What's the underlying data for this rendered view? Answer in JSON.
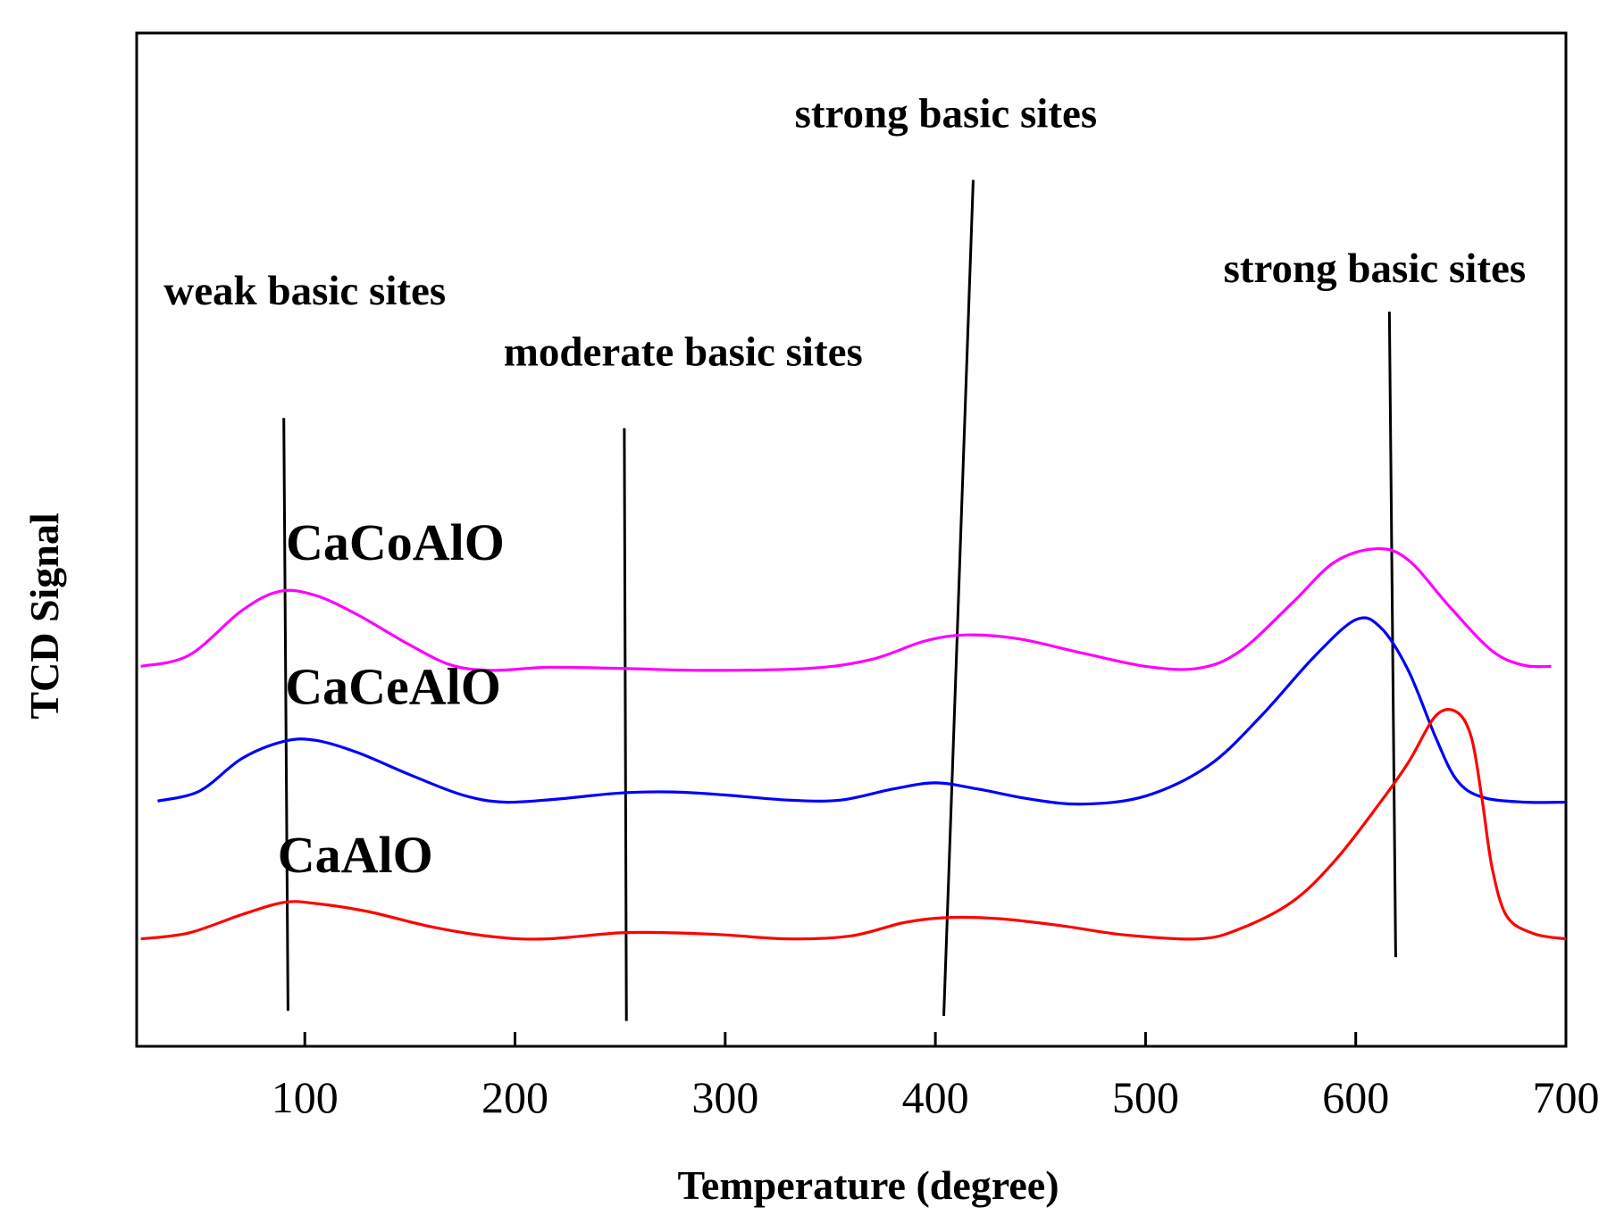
{
  "chart_data": {
    "type": "line",
    "title": "",
    "xlabel": "Temperature (degree)",
    "ylabel": "TCD Signal",
    "xlim": [
      20,
      700
    ],
    "ylim": [
      0,
      100
    ],
    "x_ticks": [
      100,
      200,
      300,
      400,
      500,
      600,
      700
    ],
    "grid": false,
    "y_ticks_shown": false,
    "series": [
      {
        "name": "CaCoAlO",
        "color": "#ff00ff",
        "points": [
          [
            22,
            37.5
          ],
          [
            45,
            38.6
          ],
          [
            70,
            43.0
          ],
          [
            88,
            44.9
          ],
          [
            105,
            44.5
          ],
          [
            125,
            42.6
          ],
          [
            150,
            39.6
          ],
          [
            170,
            37.6
          ],
          [
            190,
            37.1
          ],
          [
            215,
            37.4
          ],
          [
            250,
            37.3
          ],
          [
            290,
            37.1
          ],
          [
            340,
            37.3
          ],
          [
            370,
            38.2
          ],
          [
            395,
            40.0
          ],
          [
            415,
            40.6
          ],
          [
            440,
            40.2
          ],
          [
            470,
            38.8
          ],
          [
            500,
            37.5
          ],
          [
            525,
            37.3
          ],
          [
            545,
            39.0
          ],
          [
            570,
            43.8
          ],
          [
            590,
            47.8
          ],
          [
            610,
            49.1
          ],
          [
            625,
            48.0
          ],
          [
            645,
            43.3
          ],
          [
            665,
            39.0
          ],
          [
            680,
            37.6
          ],
          [
            693,
            37.5
          ]
        ]
      },
      {
        "name": "CaCeAlO",
        "color": "#0000ff",
        "points": [
          [
            30,
            24.2
          ],
          [
            50,
            25.2
          ],
          [
            70,
            28.4
          ],
          [
            90,
            30.1
          ],
          [
            105,
            30.2
          ],
          [
            125,
            29.0
          ],
          [
            150,
            26.8
          ],
          [
            175,
            24.8
          ],
          [
            195,
            24.1
          ],
          [
            220,
            24.4
          ],
          [
            250,
            25.0
          ],
          [
            275,
            25.1
          ],
          [
            300,
            24.8
          ],
          [
            330,
            24.3
          ],
          [
            355,
            24.3
          ],
          [
            380,
            25.4
          ],
          [
            400,
            26.0
          ],
          [
            420,
            25.4
          ],
          [
            445,
            24.4
          ],
          [
            470,
            23.9
          ],
          [
            500,
            24.7
          ],
          [
            530,
            27.7
          ],
          [
            555,
            32.6
          ],
          [
            580,
            38.4
          ],
          [
            600,
            42.1
          ],
          [
            612,
            41.3
          ],
          [
            625,
            37.1
          ],
          [
            638,
            30.5
          ],
          [
            648,
            26.3
          ],
          [
            660,
            24.6
          ],
          [
            680,
            24.1
          ],
          [
            700,
            24.1
          ]
        ]
      },
      {
        "name": "CaAlO",
        "color": "#ff0000",
        "points": [
          [
            22,
            10.6
          ],
          [
            45,
            11.2
          ],
          [
            70,
            13.0
          ],
          [
            90,
            14.2
          ],
          [
            105,
            14.1
          ],
          [
            130,
            13.3
          ],
          [
            160,
            11.8
          ],
          [
            190,
            10.8
          ],
          [
            215,
            10.6
          ],
          [
            250,
            11.2
          ],
          [
            275,
            11.2
          ],
          [
            300,
            11.0
          ],
          [
            330,
            10.6
          ],
          [
            360,
            10.9
          ],
          [
            385,
            12.2
          ],
          [
            405,
            12.7
          ],
          [
            430,
            12.6
          ],
          [
            460,
            11.9
          ],
          [
            490,
            11.0
          ],
          [
            525,
            10.6
          ],
          [
            545,
            11.6
          ],
          [
            570,
            14.3
          ],
          [
            590,
            18.3
          ],
          [
            610,
            23.6
          ],
          [
            625,
            28.0
          ],
          [
            638,
            32.6
          ],
          [
            648,
            33.0
          ],
          [
            655,
            30.5
          ],
          [
            660,
            24.5
          ],
          [
            665,
            17.5
          ],
          [
            672,
            12.8
          ],
          [
            685,
            11.1
          ],
          [
            700,
            10.6
          ]
        ]
      }
    ],
    "reference_lines": [
      {
        "x": [
          90,
          92
        ],
        "y": [
          62,
          3.5
        ]
      },
      {
        "x": [
          252,
          253
        ],
        "y": [
          61,
          2.5
        ]
      },
      {
        "x": [
          418,
          404
        ],
        "y": [
          85.5,
          3
        ]
      },
      {
        "x": [
          616,
          619
        ],
        "y": [
          72.5,
          8.8
        ]
      }
    ],
    "annotations": [
      {
        "text": "weak basic sites",
        "x": 100,
        "y": 73.2
      },
      {
        "text": "moderate basic sites",
        "x": 280,
        "y": 67.2
      },
      {
        "text": "strong basic sites",
        "x": 405,
        "y": 90.7
      },
      {
        "text": "strong basic sites",
        "x": 609,
        "y": 75.4
      }
    ],
    "series_labels": [
      {
        "text": "CaCoAlO",
        "x": 143,
        "y": 48.0
      },
      {
        "text": "CaCeAlO",
        "x": 142,
        "y": 33.8
      },
      {
        "text": "CaAlO",
        "x": 124,
        "y": 17.2
      }
    ]
  }
}
